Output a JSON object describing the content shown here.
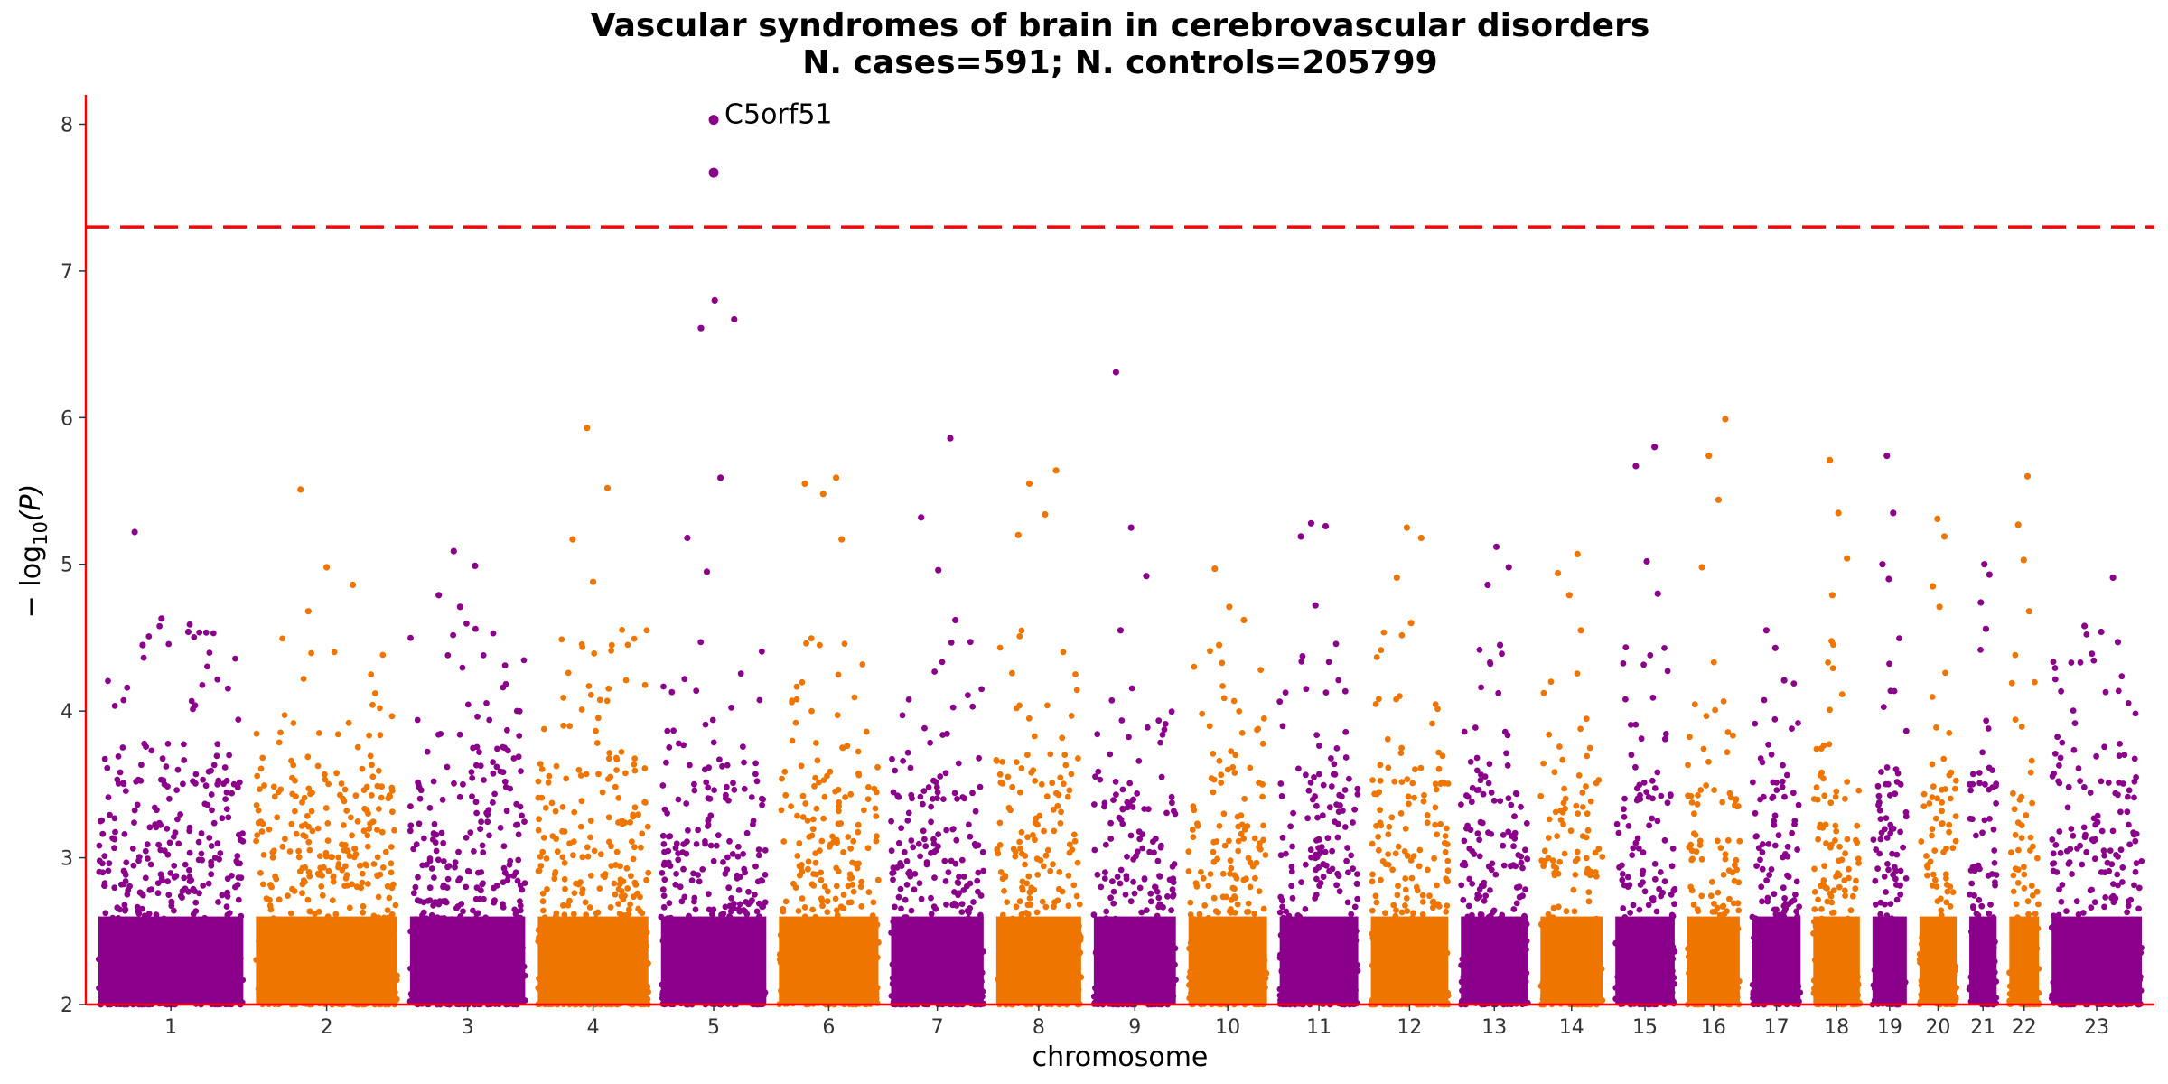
{
  "chart_data": {
    "type": "scatter",
    "title": "Vascular syndromes of brain in cerebrovascular disorders",
    "subtitle": "N. cases=591; N. controls=205799",
    "xlabel": "chromosome",
    "ylabel_prefix": "− log",
    "ylabel_sub": "10",
    "ylabel_suffix": "(P)",
    "ylim": [
      2,
      8.2
    ],
    "yticks": [
      "2",
      "3",
      "4",
      "5",
      "6",
      "7",
      "8"
    ],
    "significance_line": 7.3,
    "grid": false,
    "colors": {
      "odd": "#8B008B",
      "even": "#EE7600",
      "threshold": "#FF0000",
      "axis": "#FF0000"
    },
    "chromosomes": [
      {
        "label": "1",
        "size": 249,
        "base_max": 3.5,
        "peaks": [
          5.22,
          4.63,
          4.54,
          4.45
        ]
      },
      {
        "label": "2",
        "size": 243,
        "base_max": 3.4,
        "peaks": [
          5.51,
          4.98,
          4.86,
          4.68
        ]
      },
      {
        "label": "3",
        "size": 198,
        "base_max": 3.5,
        "peaks": [
          5.09,
          4.99,
          4.79,
          4.71
        ]
      },
      {
        "label": "4",
        "size": 190,
        "base_max": 3.5,
        "peaks": [
          5.93,
          5.52,
          5.17,
          4.88
        ]
      },
      {
        "label": "5",
        "size": 181,
        "base_max": 3.4,
        "peaks": [
          6.8,
          6.67,
          6.61,
          5.59,
          5.18,
          4.95
        ]
      },
      {
        "label": "6",
        "size": 171,
        "base_max": 3.4,
        "peaks": [
          5.59,
          5.55,
          5.48,
          5.17
        ]
      },
      {
        "label": "7",
        "size": 159,
        "base_max": 3.4,
        "peaks": [
          5.86,
          5.32,
          4.96,
          4.62
        ]
      },
      {
        "label": "8",
        "size": 146,
        "base_max": 3.5,
        "peaks": [
          5.64,
          5.55,
          5.34,
          5.2
        ]
      },
      {
        "label": "9",
        "size": 141,
        "base_max": 3.3,
        "peaks": [
          6.31,
          5.25,
          4.92,
          4.55
        ]
      },
      {
        "label": "10",
        "size": 135,
        "base_max": 3.4,
        "peaks": [
          4.97,
          4.71,
          4.62,
          4.45
        ]
      },
      {
        "label": "11",
        "size": 135,
        "base_max": 3.4,
        "peaks": [
          5.28,
          5.26,
          5.19,
          4.72
        ]
      },
      {
        "label": "12",
        "size": 133,
        "base_max": 3.5,
        "peaks": [
          5.25,
          5.18,
          4.91,
          4.6
        ]
      },
      {
        "label": "13",
        "size": 115,
        "base_max": 3.4,
        "peaks": [
          5.12,
          4.98,
          4.86,
          4.45
        ]
      },
      {
        "label": "14",
        "size": 107,
        "base_max": 3.3,
        "peaks": [
          5.07,
          4.94,
          4.79,
          4.55
        ]
      },
      {
        "label": "15",
        "size": 102,
        "base_max": 3.4,
        "peaks": [
          5.8,
          5.67,
          5.02,
          4.8
        ]
      },
      {
        "label": "16",
        "size": 90,
        "base_max": 3.4,
        "peaks": [
          5.99,
          5.74,
          5.44,
          4.98
        ]
      },
      {
        "label": "17",
        "size": 83,
        "base_max": 3.4,
        "peaks": [
          4.55,
          4.43,
          4.21
        ]
      },
      {
        "label": "18",
        "size": 80,
        "base_max": 3.4,
        "peaks": [
          5.71,
          5.35,
          5.04,
          4.79
        ]
      },
      {
        "label": "19",
        "size": 59,
        "base_max": 3.5,
        "peaks": [
          5.74,
          5.35,
          5.0,
          4.9
        ]
      },
      {
        "label": "20",
        "size": 64,
        "base_max": 3.4,
        "peaks": [
          5.31,
          5.19,
          4.85,
          4.71
        ]
      },
      {
        "label": "21",
        "size": 47,
        "base_max": 3.5,
        "peaks": [
          5.0,
          4.93,
          4.74,
          4.56
        ]
      },
      {
        "label": "22",
        "size": 51,
        "base_max": 3.3,
        "peaks": [
          5.6,
          5.27,
          5.03,
          4.68
        ]
      },
      {
        "label": "23",
        "size": 155,
        "base_max": 3.5,
        "peaks": [
          4.91,
          4.58,
          4.54,
          4.47
        ]
      }
    ],
    "top_hits": [
      {
        "chromosome": "5",
        "y": 8.03,
        "label": "C5orf51"
      },
      {
        "chromosome": "5",
        "y": 7.67
      }
    ]
  }
}
